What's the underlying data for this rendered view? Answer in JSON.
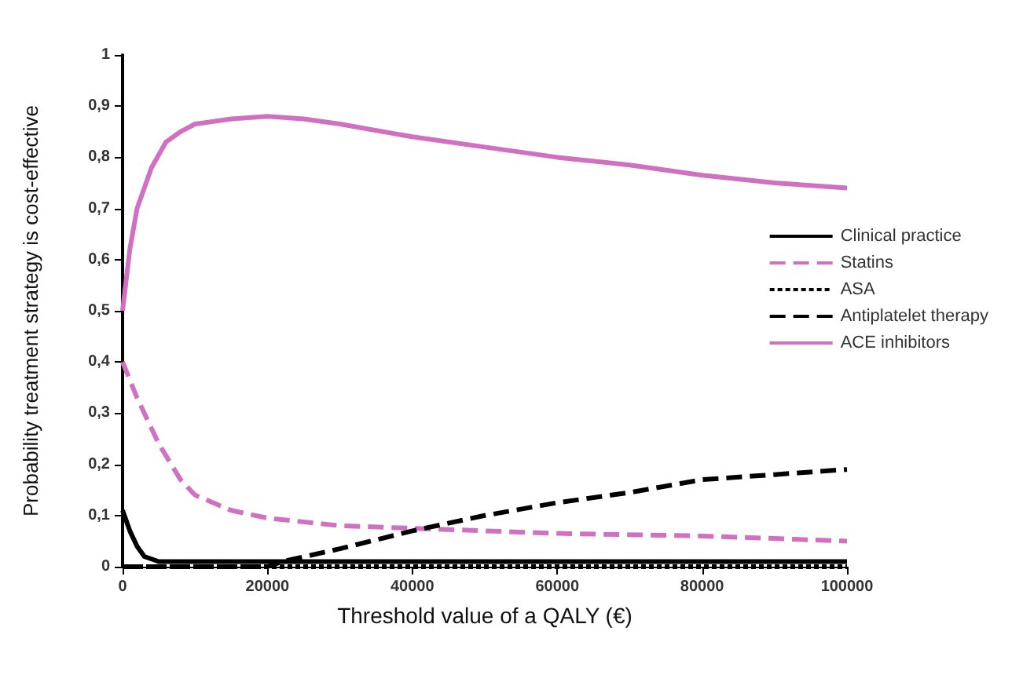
{
  "chart_data": {
    "type": "line",
    "xlabel": "Threshold value of a QALY (€)",
    "ylabel": "Probability treatment strategy is cost-effective",
    "xlim": [
      0,
      100000
    ],
    "xticks": [
      0,
      20000,
      40000,
      60000,
      80000,
      100000
    ],
    "ylim": [
      0,
      1
    ],
    "yticks": [
      0,
      {
        "value": 0.1,
        "label": "0,1"
      },
      {
        "value": 0.2,
        "label": "0,2"
      },
      {
        "value": 0.3,
        "label": "0,3"
      },
      {
        "value": 0.4,
        "label": "0,4"
      },
      {
        "value": 0.5,
        "label": "0,5"
      },
      {
        "value": 0.6,
        "label": "0,6"
      },
      {
        "value": 0.7,
        "label": "0,7"
      },
      {
        "value": 0.8,
        "label": "0,8"
      },
      {
        "value": 0.9,
        "label": "0,9"
      },
      1
    ],
    "legend": "right",
    "grid": false,
    "marker": "none",
    "series": [
      {
        "name": "Clinical practice",
        "color": "#000000",
        "line_style": "solid",
        "x": [
          0,
          1000,
          2000,
          3000,
          5000,
          10000,
          20000,
          40000,
          60000,
          80000,
          100000
        ],
        "values": [
          0.11,
          0.07,
          0.04,
          0.02,
          0.01,
          0.01,
          0.01,
          0.01,
          0.01,
          0.01,
          0.01
        ]
      },
      {
        "name": "Statins",
        "color": "#d070c0",
        "line_style": "dashed",
        "x": [
          0,
          2000,
          5000,
          8000,
          10000,
          15000,
          20000,
          30000,
          40000,
          50000,
          60000,
          80000,
          100000
        ],
        "values": [
          0.4,
          0.33,
          0.24,
          0.17,
          0.14,
          0.11,
          0.095,
          0.08,
          0.075,
          0.07,
          0.065,
          0.06,
          0.05
        ]
      },
      {
        "name": "ASA",
        "color": "#000000",
        "line_style": "dotted",
        "x": [
          0,
          20000,
          40000,
          60000,
          80000,
          100000
        ],
        "values": [
          0,
          0,
          0,
          0,
          0,
          0
        ]
      },
      {
        "name": "Antiplatelet therapy",
        "color": "#000000",
        "line_style": "dashed",
        "x": [
          0,
          10000,
          20000,
          22000,
          30000,
          40000,
          50000,
          60000,
          70000,
          80000,
          90000,
          100000
        ],
        "values": [
          0,
          0,
          0,
          0.01,
          0.035,
          0.07,
          0.1,
          0.125,
          0.145,
          0.17,
          0.18,
          0.19
        ]
      },
      {
        "name": "ACE inhibitors",
        "color": "#d070c0",
        "line_style": "solid",
        "x": [
          0,
          1000,
          2000,
          4000,
          6000,
          8000,
          10000,
          15000,
          20000,
          25000,
          30000,
          40000,
          50000,
          60000,
          70000,
          80000,
          90000,
          100000
        ],
        "values": [
          0.5,
          0.62,
          0.7,
          0.78,
          0.83,
          0.85,
          0.865,
          0.875,
          0.88,
          0.875,
          0.865,
          0.84,
          0.82,
          0.8,
          0.785,
          0.765,
          0.75,
          0.74
        ]
      }
    ]
  }
}
